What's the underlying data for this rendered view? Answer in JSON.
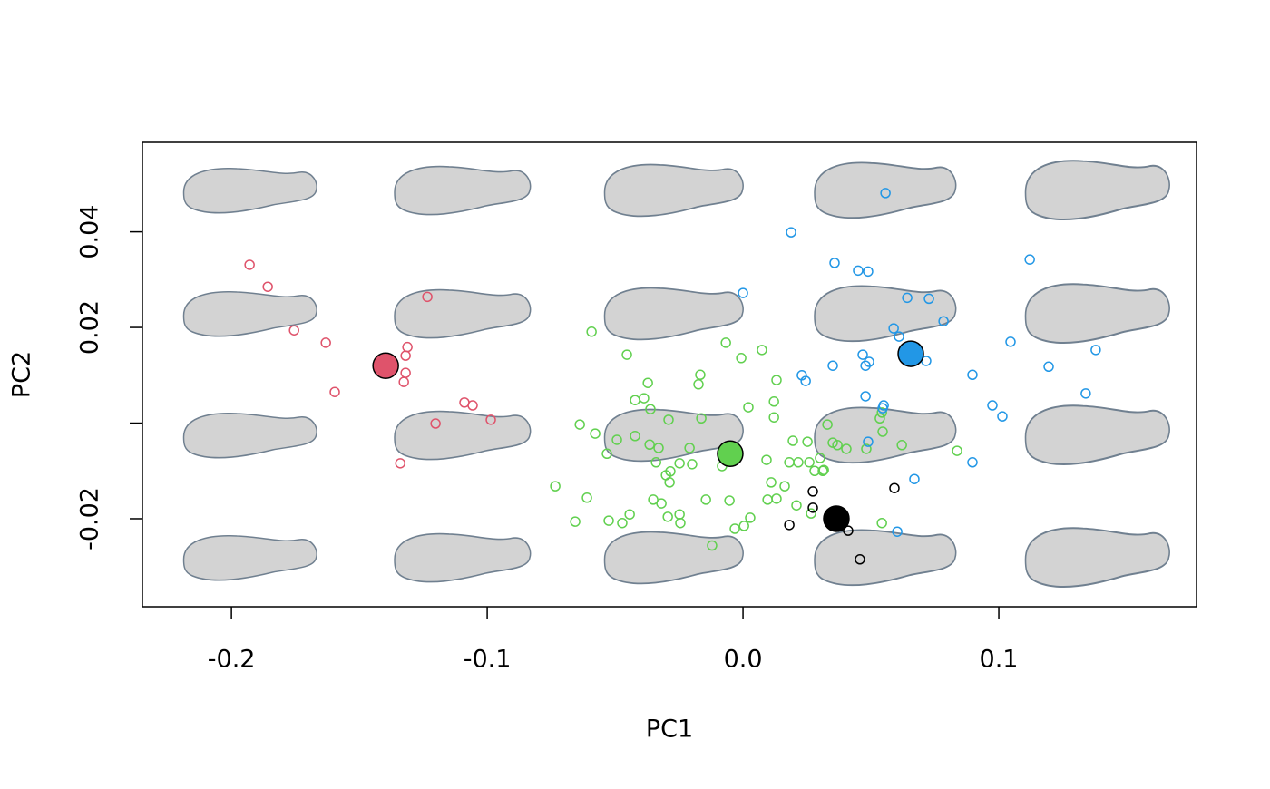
{
  "chart_data": {
    "type": "scatter",
    "x_label": "PC1",
    "y_label": "PC2",
    "xlim": [
      -0.2348,
      0.1773
    ],
    "ylim": [
      -0.0384,
      0.0587
    ],
    "xticks": [
      -0.2,
      -0.1,
      {
        "value": 0,
        "label": "0.0"
      },
      0.1
    ],
    "yticks": [
      -0.02,
      {
        "value": 0,
        "label": null
      },
      0.02,
      0.04
    ],
    "series": [
      {
        "color": "#DF536B",
        "x": [
          -0.1929,
          -0.1858,
          -0.1755,
          -0.1631,
          -0.1312,
          -0.1319,
          -0.1234,
          -0.1319,
          -0.1326,
          -0.1596,
          -0.1089,
          -0.1057,
          -0.0986,
          -0.1202,
          -0.134
        ],
        "values": [
          0.0331,
          0.0285,
          0.0194,
          0.0168,
          0.0159,
          0.0141,
          0.0264,
          0.0105,
          0.0086,
          0.0065,
          0.0043,
          0.0037,
          0.0007,
          -0.0001,
          -0.0084
        ],
        "mean_x": -0.1397,
        "mean_y": 0.012
      },
      {
        "color": "#61D04F",
        "x": [
          -0.0592,
          -0.0454,
          -0.0067,
          0.0074,
          -0.0007,
          -0.0167,
          -0.0174,
          -0.0372,
          -0.0422,
          -0.0387,
          -0.0362,
          0.0021,
          0.0131,
          0.0121,
          0.0121,
          -0.0163,
          -0.0291,
          -0.0638,
          -0.0578,
          -0.0493,
          -0.0422,
          -0.0365,
          -0.033,
          -0.0209,
          -0.0532,
          -0.034,
          -0.0248,
          -0.0199,
          -0.0284,
          -0.0301,
          -0.0287,
          -0.0734,
          -0.061,
          -0.0351,
          -0.0319,
          -0.0145,
          -0.0053,
          0.0028,
          0.0004,
          0.0092,
          0.0181,
          0.0216,
          0.0259,
          0.0252,
          0.0195,
          0.0301,
          0.028,
          0.0312,
          0.033,
          0.0351,
          0.0369,
          0.0404,
          0.0535,
          0.0546,
          0.0543,
          0.0621,
          0.0482,
          0.0837,
          0.011,
          0.0163,
          0.0096,
          0.0131,
          0.0209,
          0.0266,
          0.0316,
          -0.0082,
          -0.0248,
          -0.0294,
          -0.0245,
          -0.0443,
          -0.0525,
          -0.0472,
          -0.0656,
          -0.0121,
          -0.0032,
          0.0543
        ],
        "values": [
          0.0191,
          0.0143,
          0.0168,
          0.0153,
          0.0136,
          0.0101,
          0.0081,
          0.0084,
          0.0048,
          0.0052,
          0.0029,
          0.0033,
          0.009,
          0.0045,
          0.0012,
          0.001,
          0.0007,
          -0.0003,
          -0.0022,
          -0.0035,
          -0.0027,
          -0.0045,
          -0.0052,
          -0.0052,
          -0.0064,
          -0.0082,
          -0.0084,
          -0.0086,
          -0.0101,
          -0.0109,
          -0.0124,
          -0.0132,
          -0.0156,
          -0.016,
          -0.0168,
          -0.016,
          -0.0162,
          -0.0198,
          -0.0215,
          -0.0077,
          -0.0082,
          -0.0082,
          -0.0082,
          -0.0039,
          -0.0037,
          -0.0073,
          -0.01,
          -0.01,
          -0.0003,
          -0.0041,
          -0.0046,
          -0.0054,
          0.001,
          -0.0018,
          0.0022,
          -0.0046,
          -0.0054,
          -0.0058,
          -0.0124,
          -0.0132,
          -0.016,
          -0.0158,
          -0.0172,
          -0.0189,
          -0.0098,
          -0.009,
          -0.0191,
          -0.0196,
          -0.0209,
          -0.0191,
          -0.0204,
          -0.0209,
          -0.0206,
          -0.0256,
          -0.0221,
          -0.0209
        ],
        "mean_x": -0.005,
        "mean_y": -0.0064
      },
      {
        "color": "#2297E6",
        "x": [
          0.0557,
          0.0188,
          0.0358,
          0.045,
          0.0489,
          0.0,
          0.1121,
          0.0642,
          0.0727,
          0.0784,
          0.0589,
          0.061,
          0.1046,
          0.0468,
          0.1379,
          0.0351,
          0.0493,
          0.0479,
          0.0716,
          0.0897,
          0.1195,
          0.0245,
          0.023,
          0.134,
          0.0479,
          0.055,
          0.0546,
          0.0975,
          0.1014,
          0.0489,
          0.0897,
          0.067,
          0.0603
        ],
        "values": [
          0.0481,
          0.0399,
          0.0335,
          0.0319,
          0.0317,
          0.0272,
          0.0342,
          0.0262,
          0.026,
          0.0213,
          0.0198,
          0.0181,
          0.017,
          0.0143,
          0.0153,
          0.012,
          0.0128,
          0.012,
          0.013,
          0.0101,
          0.0118,
          0.0088,
          0.01,
          0.0062,
          0.0056,
          0.0037,
          0.0031,
          0.0037,
          0.0014,
          -0.0039,
          -0.0082,
          -0.0117,
          -0.0227
        ],
        "mean_x": 0.0656,
        "mean_y": 0.0145
      },
      {
        "color": "#000000",
        "x": [
          0.0273,
          0.0273,
          0.0181,
          0.0411,
          0.0457,
          0.0592
        ],
        "values": [
          -0.0143,
          -0.0177,
          -0.0213,
          -0.0225,
          -0.0285,
          -0.0136
        ],
        "mean_x": 0.0365,
        "mean_y": -0.02
      }
    ]
  }
}
